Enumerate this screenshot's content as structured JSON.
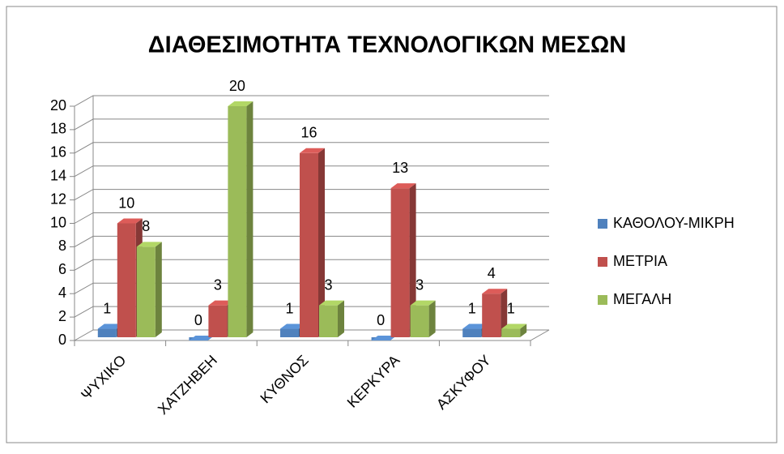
{
  "chart_data": {
    "type": "bar3d",
    "title": "ΔΙΑΘΕΣΙΜΟΤΗΤΑ ΤΕΧΝΟΛΟΓΙΚΩΝ ΜΕΣΩΝ",
    "categories": [
      "ΨΥΧΙΚΟ",
      "ΧΑΤΖΗΒΕΗ",
      "ΚΥΘΝΟΣ",
      "ΚΕΡΚΥΡΑ",
      "ΑΣΚΥΦΟΥ"
    ],
    "series": [
      {
        "name": "ΚΑΘΟΛΟΥ-ΜΙΚΡΗ",
        "color": "#4f81bd",
        "values": [
          1,
          0,
          1,
          0,
          1
        ]
      },
      {
        "name": "ΜΕΤΡΙΑ",
        "color": "#c0504d",
        "values": [
          10,
          3,
          16,
          13,
          4
        ]
      },
      {
        "name": "ΜΕΓΑΛΗ",
        "color": "#9bbb59",
        "values": [
          8,
          20,
          3,
          3,
          1
        ]
      }
    ],
    "ylim": [
      0,
      20
    ],
    "yticks": [
      0,
      2,
      4,
      6,
      8,
      10,
      12,
      14,
      16,
      18,
      20
    ],
    "grid": true,
    "legend": "right"
  }
}
